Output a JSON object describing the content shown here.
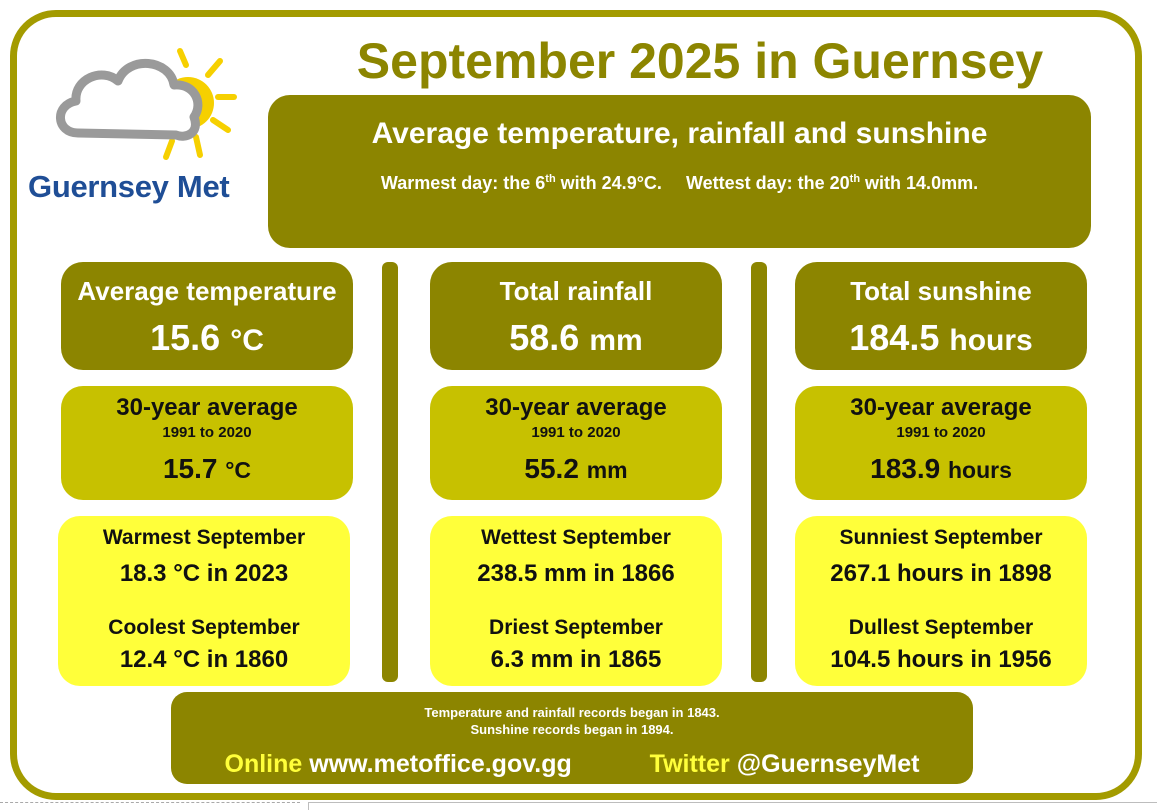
{
  "logo": {
    "text": "Guernsey Met",
    "icon": "cloud-sun-icon"
  },
  "title": "September 2025 in Guernsey",
  "summary": {
    "title": "Average temperature, rainfall and sunshine",
    "warmest_prefix": "Warmest day: the 6",
    "warmest_sup": "th",
    "warmest_suffix": " with 24.9°C.",
    "wettest_prefix": "Wettest day: the 20",
    "wettest_sup": "th",
    "wettest_suffix": " with 14.0mm."
  },
  "columns": [
    {
      "label": "Average temperature",
      "value": "15.6",
      "unit": "°C",
      "avg_label": "30-year average",
      "avg_range": "1991 to 2020",
      "avg_value": "15.7",
      "avg_unit": "°C",
      "rec1_label": "Warmest September",
      "rec1_value": "18.3 °C in 2023",
      "rec2_label": "Coolest September",
      "rec2_value": "12.4 °C in 1860"
    },
    {
      "label": "Total rainfall",
      "value": "58.6",
      "unit": "mm",
      "avg_label": "30-year average",
      "avg_range": "1991 to 2020",
      "avg_value": "55.2",
      "avg_unit": "mm",
      "rec1_label": "Wettest September",
      "rec1_value": "238.5 mm in 1866",
      "rec2_label": "Driest September",
      "rec2_value": "6.3 mm in 1865"
    },
    {
      "label": "Total sunshine",
      "value": "184.5",
      "unit": "hours",
      "avg_label": "30-year average",
      "avg_range": "1991 to 2020",
      "avg_value": "183.9",
      "avg_unit": "hours",
      "rec1_label": "Sunniest September",
      "rec1_value": "267.1 hours in 1898",
      "rec2_label": "Dullest September",
      "rec2_value": "104.5 hours in 1956"
    }
  ],
  "footer": {
    "note1": "Temperature and rainfall records began in 1843.",
    "note2": "Sunshine records began in 1894.",
    "online_label": "Online",
    "online_url": "www.metoffice.gov.gg",
    "twitter_label": "Twitter",
    "twitter_handle": "@GuernseyMet"
  },
  "colors": {
    "olive_dark": "#8c8500",
    "olive_mid": "#c7c100",
    "yellow": "#ffff3a",
    "logo_blue": "#1f4e96"
  }
}
